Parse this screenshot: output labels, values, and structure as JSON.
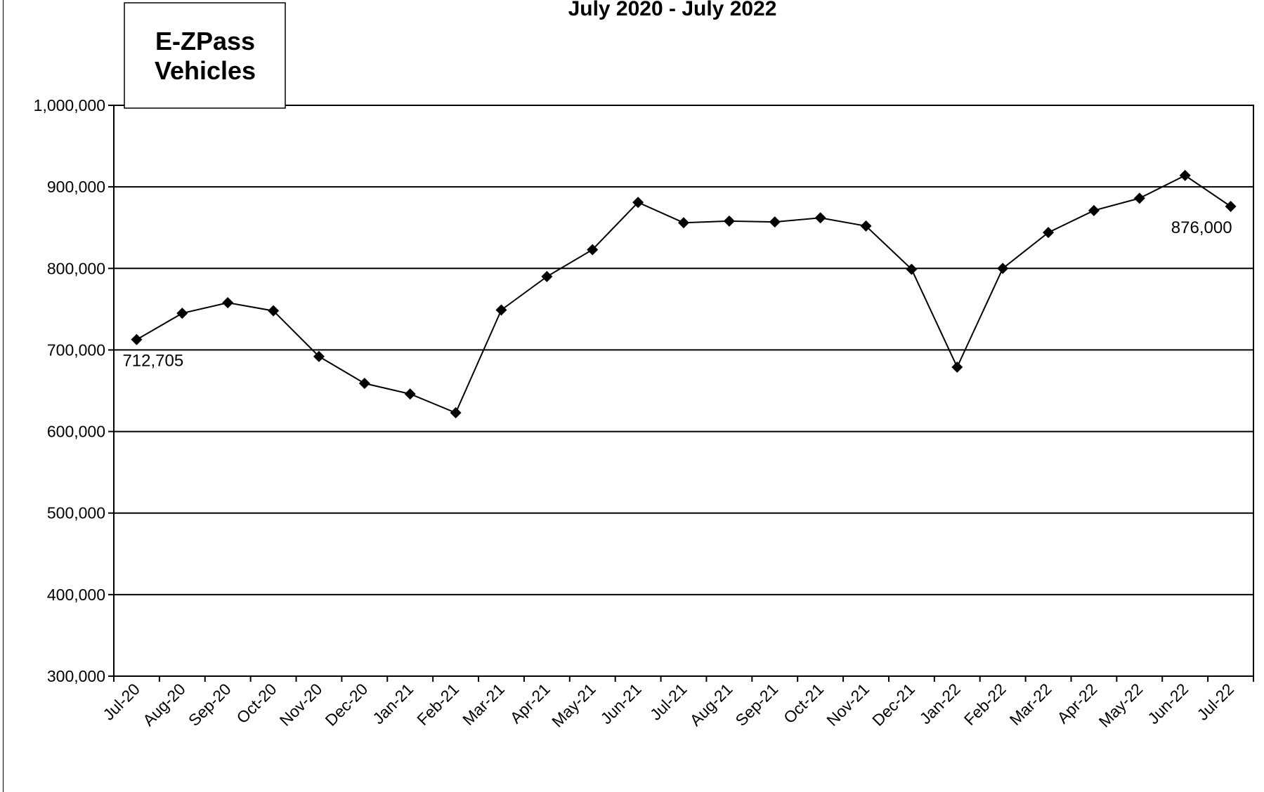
{
  "chart_data": {
    "type": "line",
    "title": "July 2020 - July 2022",
    "box_label_lines": [
      "E-ZPass",
      "Vehicles"
    ],
    "ylim": [
      300000,
      1000000
    ],
    "yticks": [
      300000,
      400000,
      500000,
      600000,
      700000,
      800000,
      900000,
      1000000
    ],
    "ytick_labels": [
      "300,000",
      "400,000",
      "500,000",
      "600,000",
      "700,000",
      "800,000",
      "900,000",
      "1,000,000"
    ],
    "grid": true,
    "marker": "diamond",
    "line_color": "#000000",
    "categories": [
      "Jul-20",
      "Aug-20",
      "Sep-20",
      "Oct-20",
      "Nov-20",
      "Dec-20",
      "Jan-21",
      "Feb-21",
      "Mar-21",
      "Apr-21",
      "May-21",
      "Jun-21",
      "Jul-21",
      "Aug-21",
      "Sep-21",
      "Oct-21",
      "Nov-21",
      "Dec-21",
      "Jan-22",
      "Feb-22",
      "Mar-22",
      "Apr-22",
      "May-22",
      "Jun-22",
      "Jul-22"
    ],
    "values": [
      712705,
      745000,
      758000,
      748000,
      692000,
      659000,
      646000,
      623000,
      749000,
      790000,
      823000,
      881000,
      856000,
      858000,
      857000,
      862000,
      852000,
      799000,
      679000,
      800000,
      844000,
      871000,
      886000,
      914000,
      876000
    ],
    "data_labels": [
      {
        "index": 0,
        "text": "712,705",
        "position": "below"
      },
      {
        "index": 24,
        "text": "876,000",
        "position": "below-left"
      }
    ]
  }
}
